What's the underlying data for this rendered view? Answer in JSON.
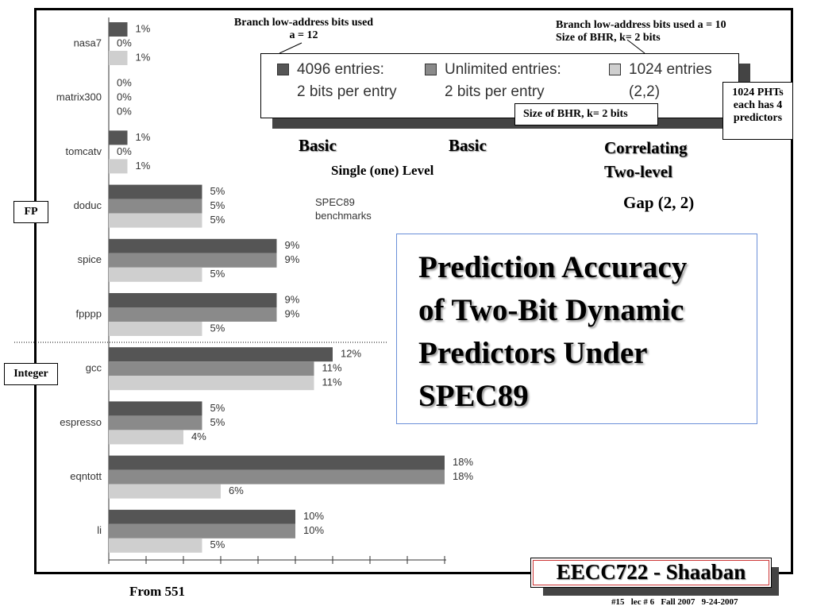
{
  "chart_data": {
    "type": "hbar",
    "title": "Prediction Accuracy\nof Two-Bit Dynamic\nPredictors Under\nSPEC89",
    "subtitle": "SPEC89\nbenchmarks",
    "categories": [
      "nasa7",
      "matrix300",
      "tomcatv",
      "doduc",
      "spice",
      "fpppp",
      "gcc",
      "espresso",
      "eqntott",
      "li"
    ],
    "series": [
      {
        "name": "4096 entries:\n2 bits per entry",
        "color": "#555555",
        "values": [
          1,
          0,
          1,
          5,
          9,
          9,
          12,
          5,
          18,
          10
        ],
        "value_labels": [
          "1%",
          "0%",
          "1%",
          "5%",
          "9%",
          "9%",
          "12%",
          "5%",
          "18%",
          "10%"
        ]
      },
      {
        "name": "Unlimited entries:\n2 bits per entry",
        "color": "#8a8a8a",
        "values": [
          0,
          0,
          0,
          5,
          9,
          9,
          11,
          5,
          18,
          10
        ],
        "value_labels": [
          "0%",
          "0%",
          "0%",
          "5%",
          "9%",
          "9%",
          "11%",
          "5%",
          "18%",
          "10%"
        ]
      },
      {
        "name": "1024 entries\n(2,2)",
        "color": "#cfcfcf",
        "values": [
          1,
          0,
          1,
          5,
          5,
          5,
          11,
          4,
          6,
          5
        ],
        "value_labels": [
          "1%",
          "0%",
          "1%",
          "5%",
          "5%",
          "5%",
          "11%",
          "4%",
          "6%",
          "5%"
        ]
      }
    ],
    "xlim": [
      0,
      18
    ],
    "xticks": [
      0,
      2,
      4,
      6,
      8,
      10,
      12,
      14,
      16,
      18
    ],
    "groups": [
      "FP",
      "Integer"
    ]
  },
  "annotations": {
    "a12": "Branch low-address bits used\na = 12",
    "a10": "Branch low-address bits used a = 10\nSize of BHR, k= 2 bits",
    "bhr": "Size of BHR, k= 2 bits",
    "phts": "1024 PHTs\neach has 4\npredictors",
    "basic1": "Basic",
    "basic2": "Basic",
    "single": "Single (one) Level",
    "corr": "Correlating\nTwo-level",
    "gap": "Gap (2, 2)"
  },
  "footer": {
    "course": "EECC722 - Shaaban",
    "source": "From 551",
    "info": "#15   lec # 6   Fall 2007   9-24-2007"
  }
}
